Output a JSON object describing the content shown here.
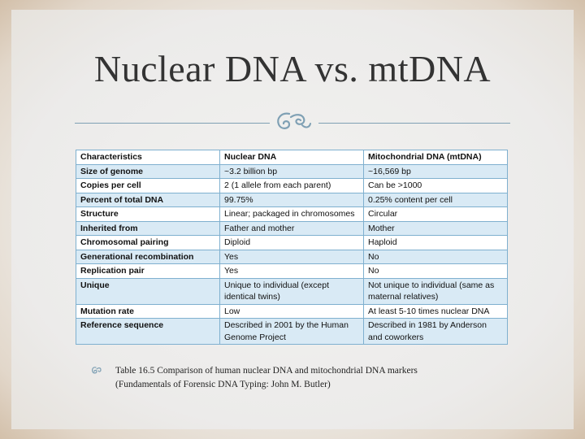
{
  "slide": {
    "title": "Nuclear DNA vs. mtDNA"
  },
  "table": {
    "headers": [
      "Characteristics",
      "Nuclear DNA",
      "Mitochondrial DNA (mtDNA)"
    ],
    "rows": [
      [
        "Size of genome",
        "~3.2 billion bp",
        "~16,569 bp"
      ],
      [
        "Copies per cell",
        "2 (1 allele from each parent)",
        "Can be >1000"
      ],
      [
        "Percent of total DNA",
        "99.75%",
        "0.25% content per cell"
      ],
      [
        "Structure",
        "Linear; packaged in chromosomes",
        "Circular"
      ],
      [
        "Inherited from",
        "Father and mother",
        "Mother"
      ],
      [
        "Chromosomal pairing",
        "Diploid",
        "Haploid"
      ],
      [
        "Generational recombination",
        "Yes",
        "No"
      ],
      [
        "Replication pair",
        "Yes",
        "No"
      ],
      [
        "Unique",
        "Unique to individual (except identical twins)",
        "Not unique to individual (same as maternal relatives)"
      ],
      [
        "Mutation rate",
        "Low",
        "At least 5-10 times nuclear DNA"
      ],
      [
        "Reference sequence",
        "Described in 2001 by the Human Genome Project",
        "Described in 1981 by Anderson and coworkers"
      ]
    ]
  },
  "caption": {
    "line1": "Table 16.5 Comparison of human nuclear DNA and mitochondrial DNA markers",
    "line2": "(Fundamentals of Forensic DNA Typing: John M. Butler)"
  },
  "colors": {
    "title_text": "#333333",
    "divider": "#7fa0b4",
    "table_border": "#7fb0cf",
    "table_row_tint": "#d9eaf5",
    "frame": "#d9c8b4"
  },
  "icons": [
    "curl-ornament-icon",
    "curl-bullet-icon"
  ]
}
